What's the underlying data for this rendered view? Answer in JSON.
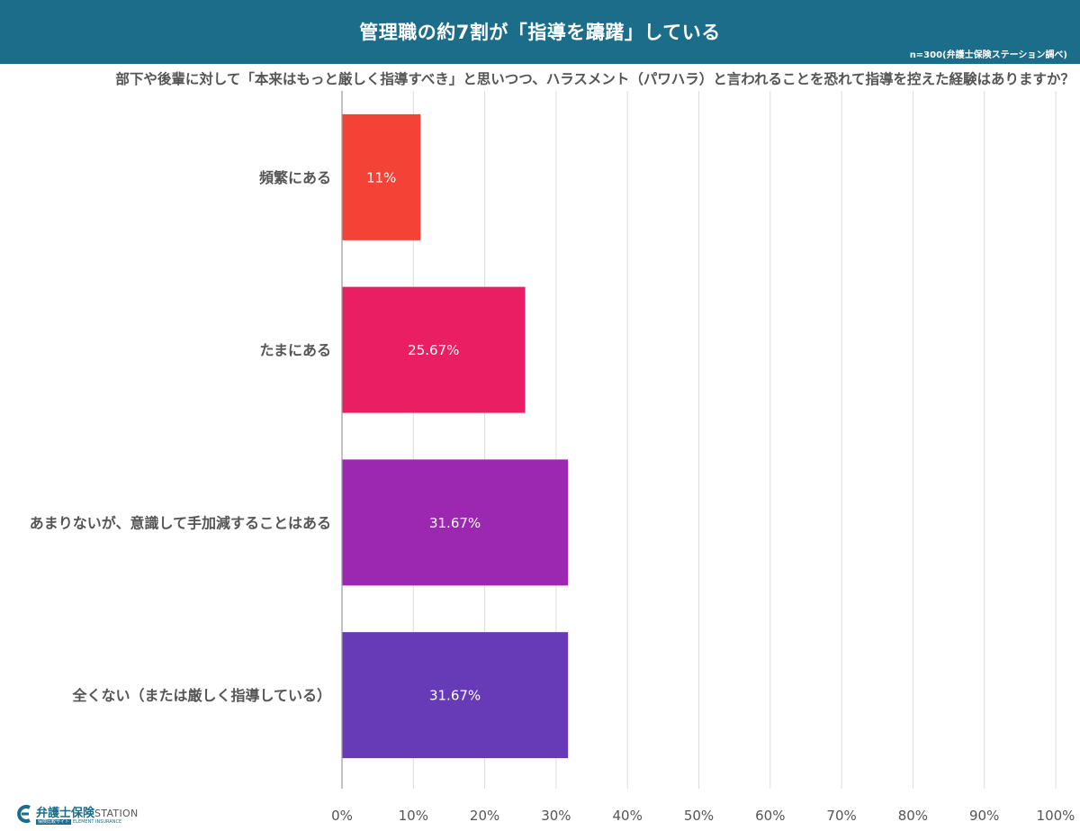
{
  "header": {
    "title": "管理職の約7割が「指導を躊躇」している",
    "source": "n=300(弁護士保険ステーション調べ)"
  },
  "question": "部下や後輩に対して「本来はもっと厳しく指導すべき」と思いつつ、ハラスメント（パワハラ）と言われることを恐れて指導を控えた経験はありますか？",
  "logo": {
    "brand": "弁護士保険",
    "station": "STATION",
    "sub_pill": "保険比較サイト",
    "sub_text": "ELEMENT INSURANCE"
  },
  "colors": {
    "header_bg": "#1b6d8a",
    "grid": "#dddddd",
    "axis": "#999999",
    "text": "#555555"
  },
  "chart_data": {
    "type": "bar",
    "orientation": "horizontal",
    "title": "管理職の約7割が「指導を躊躇」している",
    "categories": [
      "頻繁にある",
      "たまにある",
      "あまりないが、意識して手加減することはある",
      "全くない（または厳しく指導している）"
    ],
    "values": [
      11,
      25.67,
      31.67,
      31.67
    ],
    "value_labels": [
      "11%",
      "25.67%",
      "31.67%",
      "31.67%"
    ],
    "colors": [
      "#f44336",
      "#e91e63",
      "#9c27b0",
      "#673ab7"
    ],
    "xlim": [
      0,
      100
    ],
    "ticks": [
      0,
      10,
      20,
      30,
      40,
      50,
      60,
      70,
      80,
      90,
      100
    ],
    "tick_labels": [
      "0%",
      "10%",
      "20%",
      "30%",
      "40%",
      "50%",
      "60%",
      "70%",
      "80%",
      "90%",
      "100%"
    ],
    "grid": true,
    "legend": "none"
  }
}
